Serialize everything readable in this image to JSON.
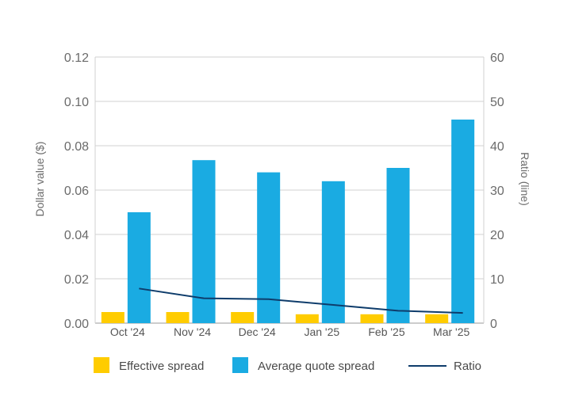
{
  "chart_data": {
    "type": "bar",
    "categories": [
      "Oct '24",
      "Nov '24",
      "Dec '24",
      "Jan '25",
      "Feb '25",
      "Mar '25"
    ],
    "series": [
      {
        "name": "Effective spread",
        "axis": "left",
        "type": "bar",
        "color": "#FFCC00",
        "values": [
          0.005,
          0.005,
          0.005,
          0.004,
          0.004,
          0.004
        ]
      },
      {
        "name": "Average quote spread",
        "axis": "left",
        "type": "bar",
        "color": "#1AABE2",
        "values": [
          0.05,
          0.0735,
          0.068,
          0.064,
          0.07,
          0.0918
        ]
      },
      {
        "name": "Ratio",
        "axis": "right",
        "type": "line",
        "color": "#0E3C6B",
        "values": [
          7.8,
          5.6,
          5.4,
          4.1,
          2.8,
          2.3
        ]
      }
    ],
    "ylabel": "Dollar value ($)",
    "y2label": "Ratio (line)",
    "ylim": [
      0,
      0.12
    ],
    "y2lim": [
      0,
      60
    ],
    "yticks": [
      "0.00",
      "0.02",
      "0.04",
      "0.06",
      "0.08",
      "0.10",
      "0.12"
    ],
    "y2ticks": [
      "0",
      "10",
      "20",
      "30",
      "40",
      "50",
      "60"
    ],
    "grid": true,
    "legend_position": "bottom"
  }
}
